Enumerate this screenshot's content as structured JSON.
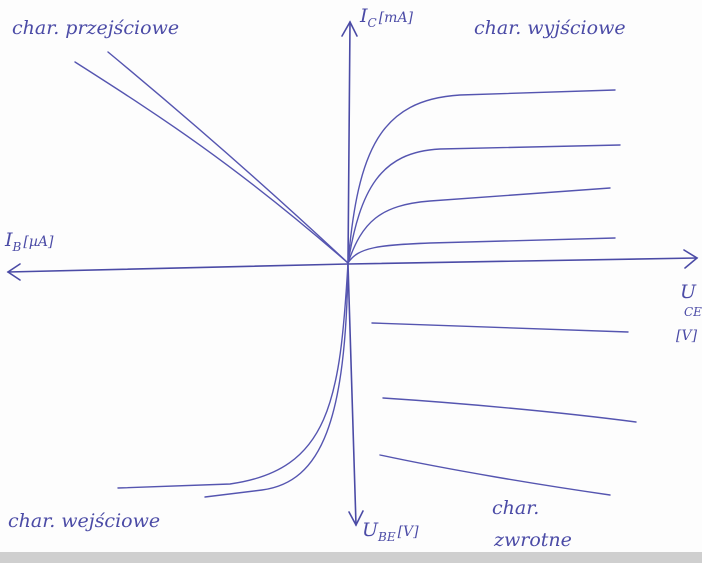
{
  "labels": {
    "transfer": "char. przejściowe",
    "output": "char. wyjściowe",
    "input": "char. wejściowe",
    "feedback": [
      "char.",
      "zwrotne"
    ]
  },
  "axes": {
    "ic": {
      "symbol": "I",
      "subscript": "C",
      "unit": "[mA]"
    },
    "ib": {
      "symbol": "I",
      "subscript": "B",
      "unit": "[µA]"
    },
    "uce": {
      "symbol": "U",
      "subscript": "CE",
      "unit": "[V]"
    },
    "ube": {
      "symbol": "U",
      "subscript": "BE",
      "unit": "[V]"
    }
  }
}
